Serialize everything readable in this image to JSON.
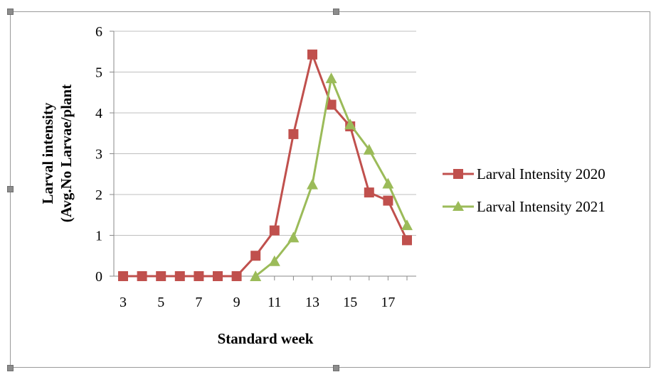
{
  "chart_data": {
    "type": "line",
    "xlabel": "Standard week",
    "ylabel_lines": [
      "Larval intensity",
      "(Avg.No Larvae/plant"
    ],
    "x": [
      3,
      4,
      5,
      6,
      7,
      8,
      9,
      10,
      11,
      12,
      13,
      14,
      15,
      16,
      17,
      18
    ],
    "xticks": [
      "3",
      "5",
      "7",
      "9",
      "11",
      "13",
      "15",
      "17"
    ],
    "yticks": [
      "0",
      "1",
      "2",
      "3",
      "4",
      "5",
      "6"
    ],
    "ylim": [
      0,
      6
    ],
    "grid": "horizontal",
    "legend_position": "right",
    "series": [
      {
        "name": "Larval Intensity 2020",
        "color": "#c0504d",
        "marker": "square",
        "values": [
          0,
          0,
          0,
          0,
          0,
          0,
          0,
          0.5,
          1.12,
          3.48,
          5.43,
          4.2,
          3.67,
          2.05,
          1.85,
          0.88
        ]
      },
      {
        "name": "Larval Intensity 2021",
        "color": "#9bbb59",
        "marker": "triangle",
        "values": [
          null,
          null,
          null,
          null,
          null,
          null,
          null,
          0,
          0.37,
          0.95,
          2.25,
          4.85,
          3.72,
          3.1,
          2.27,
          1.25
        ]
      }
    ]
  }
}
